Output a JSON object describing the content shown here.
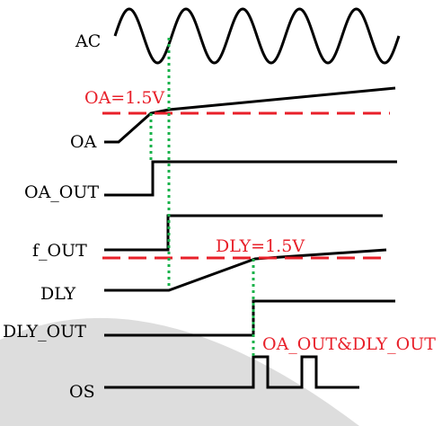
{
  "signals": [
    {
      "key": "ac",
      "label": "AC"
    },
    {
      "key": "oa",
      "label": "OA"
    },
    {
      "key": "oa_out",
      "label": "OA_OUT"
    },
    {
      "key": "f_out",
      "label": "f_OUT"
    },
    {
      "key": "dly",
      "label": "DLY"
    },
    {
      "key": "dly_out",
      "label": "DLY_OUT"
    },
    {
      "key": "os",
      "label": "OS"
    }
  ],
  "annotations": {
    "oa_threshold": "OA=1.5V",
    "dly_threshold": "DLY=1.5V",
    "os_condition": "OA_OUT&DLY_OUT"
  },
  "colors": {
    "waveform": "#000000",
    "threshold": "#e8202a",
    "guide": "#19b24a",
    "background": "#ffffff",
    "watermark": "#dddddd"
  }
}
